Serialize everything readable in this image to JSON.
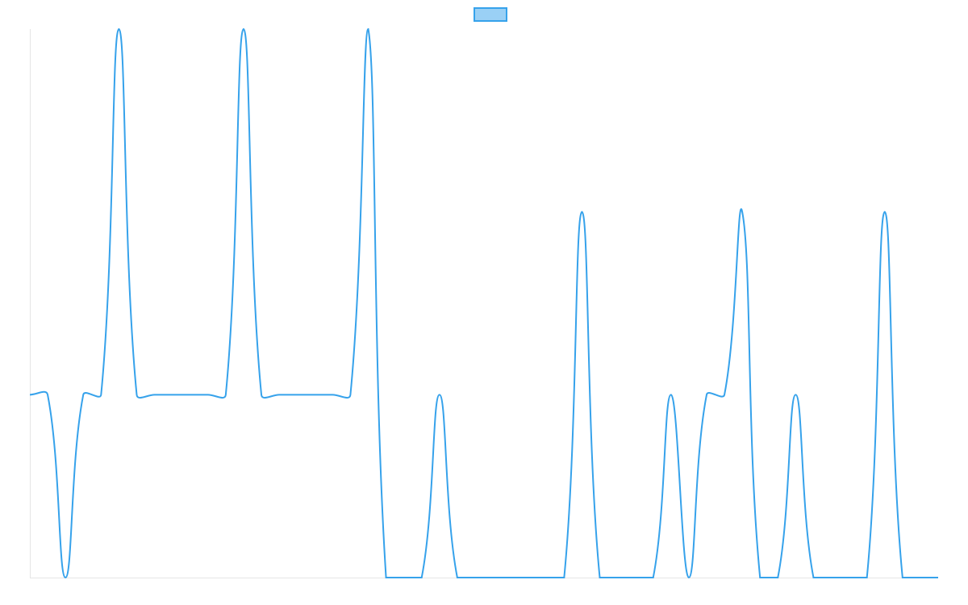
{
  "chart_data": {
    "type": "line",
    "series": [
      {
        "color": "#36a2eb",
        "values": [
          1,
          1,
          0,
          1,
          1,
          3,
          1,
          1,
          1,
          1,
          1,
          1,
          3,
          1,
          1,
          1,
          1,
          1,
          1,
          3,
          0,
          0,
          0,
          1,
          0,
          0,
          0,
          0,
          0,
          0,
          0,
          2,
          0,
          0,
          0,
          0,
          1,
          0,
          1,
          1,
          2,
          0,
          0,
          1,
          0,
          0,
          0,
          0,
          2,
          0,
          0,
          0
        ]
      }
    ],
    "ylim": [
      0,
      3
    ],
    "legend": "top",
    "grid": false,
    "tension": 0.4
  }
}
